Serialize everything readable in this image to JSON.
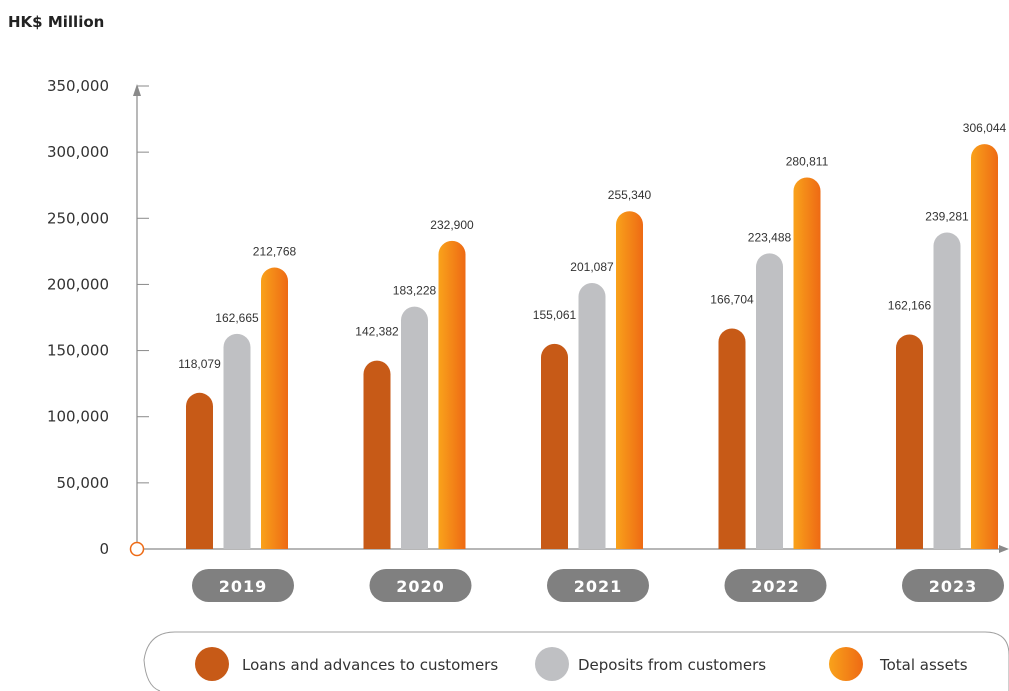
{
  "unit_label": "HK$ Million",
  "colors": {
    "loans": "#c75a17",
    "deposits": "#bfc0c3",
    "assets_light": "#f9a21b",
    "assets_dark": "#ee6a14",
    "pill": "#808080",
    "axis": "#8a8a8a",
    "origin_marker": "#ee6a14"
  },
  "chart_data": {
    "type": "bar",
    "categories": [
      "2019",
      "2020",
      "2021",
      "2022",
      "2023"
    ],
    "ylim": [
      0,
      350000
    ],
    "yticks": [
      0,
      50000,
      100000,
      150000,
      200000,
      250000,
      300000,
      350000
    ],
    "ytick_labels": [
      "0",
      "50,000",
      "100,000",
      "150,000",
      "200,000",
      "250,000",
      "300,000",
      "350,000"
    ],
    "series": [
      {
        "key": "loans",
        "name": "Loans and advances to customers",
        "values": [
          118079,
          142382,
          155061,
          166704,
          162166
        ],
        "labels": [
          "118,079",
          "142,382",
          "155,061",
          "166,704",
          "162,166"
        ]
      },
      {
        "key": "deposits",
        "name": "Deposits from customers",
        "values": [
          162665,
          183228,
          201087,
          223488,
          239281
        ],
        "labels": [
          "162,665",
          "183,228",
          "201,087",
          "223,488",
          "239,281"
        ]
      },
      {
        "key": "assets",
        "name": "Total assets",
        "values": [
          212768,
          232900,
          255340,
          280811,
          306044
        ],
        "labels": [
          "212,768",
          "232,900",
          "255,340",
          "280,811",
          "306,044"
        ]
      }
    ],
    "legend_position": "bottom",
    "grid": false
  }
}
